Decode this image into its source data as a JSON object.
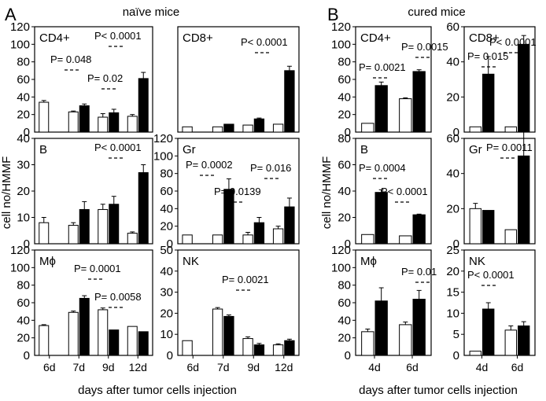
{
  "figure": {
    "panel_a_letter": "A",
    "panel_b_letter": "B",
    "panel_a_title": "naïve mice",
    "panel_b_title": "cured mice",
    "ylabel_a": "cell no/HMMF",
    "ylabel_b": "cell no/HMMF",
    "xlabel_a": "days after tumor cells injection",
    "xlabel_b": "days after tumor cells injection"
  },
  "colors": {
    "open": "#ffffff",
    "filled": "#000000"
  },
  "chart_data": [
    {
      "type": "bar",
      "panel": "A",
      "label": "CD4+",
      "categories": [
        "6d",
        "7d",
        "9d",
        "12d"
      ],
      "ylim": [
        0,
        120
      ],
      "yticks": [
        20,
        40,
        60,
        80,
        100,
        120
      ],
      "series": [
        {
          "values": [
            34,
            23,
            17,
            18
          ],
          "errors": [
            2,
            1,
            4,
            2
          ]
        },
        {
          "values": [
            null,
            30,
            22,
            61
          ],
          "errors": [
            null,
            2,
            4,
            7
          ]
        }
      ],
      "annotations": [
        "P= 0.048",
        "P= 0.02",
        "P< 0.0001"
      ]
    },
    {
      "type": "bar",
      "panel": "A",
      "label": "CD8+",
      "categories": [
        "6d",
        "7d",
        "9d",
        "12d"
      ],
      "ylim": [
        0,
        120
      ],
      "yticks": [],
      "series": [
        {
          "values": [
            6,
            6,
            8,
            9
          ],
          "errors": [
            0,
            0,
            0,
            0
          ]
        },
        {
          "values": [
            null,
            9,
            15,
            70
          ],
          "errors": [
            null,
            0,
            1,
            5
          ]
        }
      ],
      "annotations": [
        "P< 0.0001"
      ]
    },
    {
      "type": "bar",
      "panel": "A",
      "label": "B",
      "categories": [
        "6d",
        "7d",
        "9d",
        "12d"
      ],
      "ylim": [
        0,
        40
      ],
      "yticks": [
        10,
        20,
        30,
        40
      ],
      "series": [
        {
          "values": [
            8,
            7,
            13,
            4
          ],
          "errors": [
            2,
            1,
            2,
            0.5
          ]
        },
        {
          "values": [
            null,
            13,
            15,
            27
          ],
          "errors": [
            null,
            3,
            3,
            3
          ]
        }
      ],
      "annotations": [
        "P< 0.0001"
      ]
    },
    {
      "type": "bar",
      "panel": "A",
      "label": "Gr",
      "categories": [
        "6d",
        "7d",
        "9d",
        "12d"
      ],
      "ylim": [
        0,
        120
      ],
      "yticks": [
        20,
        40,
        60,
        80,
        100,
        120
      ],
      "series": [
        {
          "values": [
            10,
            10,
            10,
            17
          ],
          "errors": [
            0,
            0,
            3,
            3
          ]
        },
        {
          "values": [
            null,
            62,
            24,
            42
          ],
          "errors": [
            null,
            12,
            6,
            10
          ]
        }
      ],
      "annotations": [
        "P= 0.0002",
        "P= 0.016",
        "P= 0.0139"
      ]
    },
    {
      "type": "bar",
      "panel": "A",
      "label": "Mϕ",
      "categories": [
        "6d",
        "7d",
        "9d",
        "12d"
      ],
      "ylim": [
        0,
        120
      ],
      "yticks": [
        20,
        40,
        60,
        80,
        100,
        120
      ],
      "series": [
        {
          "values": [
            34,
            49,
            52,
            33
          ],
          "errors": [
            1,
            1.5,
            2,
            0
          ]
        },
        {
          "values": [
            null,
            65,
            29,
            27
          ],
          "errors": [
            null,
            3,
            0,
            0
          ]
        }
      ],
      "annotations": [
        "P= 0.0001",
        "P= 0.0058"
      ]
    },
    {
      "type": "bar",
      "panel": "A",
      "label": "NK",
      "categories": [
        "6d",
        "7d",
        "9d",
        "12d"
      ],
      "ylim": [
        0,
        50
      ],
      "yticks": [
        10,
        20,
        30,
        40,
        50
      ],
      "series": [
        {
          "values": [
            7,
            22,
            8,
            5
          ],
          "errors": [
            0,
            0.7,
            0.8,
            0.5
          ]
        },
        {
          "values": [
            null,
            18.5,
            5,
            7
          ],
          "errors": [
            null,
            0.7,
            0.7,
            0.7
          ]
        }
      ],
      "annotations": [
        "P= 0.0021"
      ]
    },
    {
      "type": "bar",
      "panel": "B",
      "label": "CD4+",
      "categories": [
        "4d",
        "6d"
      ],
      "ylim": [
        0,
        120
      ],
      "yticks": [
        20,
        40,
        60,
        80,
        100,
        120
      ],
      "series": [
        {
          "values": [
            10,
            38
          ],
          "errors": [
            0,
            1
          ]
        },
        {
          "values": [
            53,
            69
          ],
          "errors": [
            4,
            2
          ]
        }
      ],
      "annotations": [
        "P= 0.0021",
        "P= 0.0015"
      ]
    },
    {
      "type": "bar",
      "panel": "B",
      "label": "CD8+",
      "categories": [
        "4d",
        "6d"
      ],
      "ylim": [
        0,
        60
      ],
      "yticks": [
        20,
        40,
        60
      ],
      "series": [
        {
          "values": [
            3,
            3
          ],
          "errors": [
            0,
            0
          ]
        },
        {
          "values": [
            33,
            50
          ],
          "errors": [
            10,
            5
          ]
        }
      ],
      "annotations": [
        "P= 0.015",
        "P< 0.0001"
      ]
    },
    {
      "type": "bar",
      "panel": "B",
      "label": "B",
      "categories": [
        "4d",
        "6d"
      ],
      "ylim": [
        0,
        80
      ],
      "yticks": [
        20,
        40,
        60,
        80
      ],
      "series": [
        {
          "values": [
            7,
            6
          ],
          "errors": [
            0,
            0
          ]
        },
        {
          "values": [
            39,
            22
          ],
          "errors": [
            2,
            0.5
          ]
        }
      ],
      "annotations": [
        "P= 0.0004",
        "P< 0.0001"
      ]
    },
    {
      "type": "bar",
      "panel": "B",
      "label": "Gr",
      "categories": [
        "4d",
        "6d"
      ],
      "ylim": [
        0,
        60
      ],
      "yticks": [
        20,
        40,
        60
      ],
      "series": [
        {
          "values": [
            20,
            8
          ],
          "errors": [
            3,
            0
          ]
        },
        {
          "values": [
            19,
            50
          ],
          "errors": [
            0,
            15
          ]
        }
      ],
      "annotations": [
        "P= 0.0011"
      ]
    },
    {
      "type": "bar",
      "panel": "B",
      "label": "Mϕ",
      "categories": [
        "4d",
        "6d"
      ],
      "ylim": [
        0,
        120
      ],
      "yticks": [
        20,
        40,
        60,
        80,
        100,
        120
      ],
      "series": [
        {
          "values": [
            27,
            35
          ],
          "errors": [
            3,
            3
          ]
        },
        {
          "values": [
            62,
            64
          ],
          "errors": [
            15,
            10
          ]
        }
      ],
      "annotations": [
        "P= 0.01"
      ]
    },
    {
      "type": "bar",
      "panel": "B",
      "label": "NK",
      "categories": [
        "4d",
        "6d"
      ],
      "ylim": [
        0,
        25
      ],
      "yticks": [
        5,
        10,
        15,
        20,
        25
      ],
      "series": [
        {
          "values": [
            1,
            6
          ],
          "errors": [
            0,
            1
          ]
        },
        {
          "values": [
            11,
            7
          ],
          "errors": [
            1.5,
            1
          ]
        }
      ],
      "annotations": [
        "P< 0.0001"
      ]
    }
  ]
}
